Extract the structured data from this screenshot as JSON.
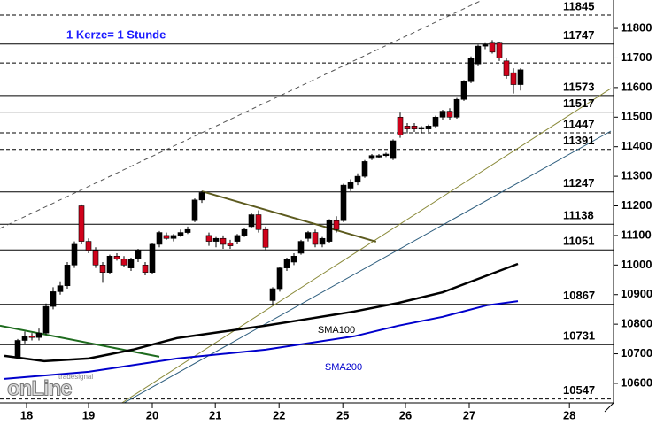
{
  "chart_data": {
    "type": "candlestick",
    "annotation": "1 Kerze= 1 Stunde",
    "up_color": "#000000",
    "down_color": "#d0021b",
    "open": [
      10690,
      10745,
      10760,
      10755,
      10770,
      10860,
      10910,
      10930,
      11000,
      11200,
      11080,
      11050,
      11000,
      10975,
      11030,
      11020,
      10990,
      11020,
      11000,
      10975,
      11070,
      11100,
      11090,
      11100,
      11110,
      11150,
      11220,
      11100,
      11080,
      11090,
      11075,
      11080,
      11100,
      11130,
      11170,
      11120,
      10880,
      10920,
      10990,
      11010,
      11040,
      11090,
      11110,
      11070,
      11080,
      11150,
      11150,
      11260,
      11280,
      11300,
      11360,
      11365,
      11370,
      11360,
      11500,
      11470,
      11470,
      11460,
      11460,
      11470,
      11500,
      11520,
      11500,
      11560,
      11620,
      11680,
      11740,
      11750,
      11750,
      11690,
      11650,
      11610
    ],
    "high": [
      10750,
      10775,
      10770,
      10785,
      10870,
      10925,
      10945,
      11010,
      11080,
      11205,
      11090,
      11060,
      11010,
      11035,
      11040,
      11030,
      11025,
      11055,
      11010,
      11075,
      11115,
      11110,
      11105,
      11120,
      11130,
      11225,
      11250,
      11110,
      11095,
      11100,
      11085,
      11105,
      11125,
      11175,
      11185,
      11130,
      10925,
      10995,
      11025,
      11040,
      11085,
      11115,
      11120,
      11095,
      11155,
      11165,
      11275,
      11290,
      11310,
      11355,
      11375,
      11375,
      11380,
      11425,
      11515,
      11480,
      11480,
      11470,
      11475,
      11505,
      11525,
      11530,
      11565,
      11625,
      11705,
      11745,
      11750,
      11760,
      11755,
      11700,
      11665,
      11665
    ],
    "low": [
      10685,
      10735,
      10745,
      10745,
      10765,
      10850,
      10900,
      10920,
      10990,
      11070,
      11040,
      10990,
      10940,
      10970,
      11015,
      10995,
      10980,
      11010,
      10965,
      10970,
      11060,
      11085,
      11080,
      11095,
      11105,
      11145,
      11210,
      11065,
      11060,
      11055,
      11055,
      11070,
      11095,
      11125,
      11110,
      11050,
      10865,
      10910,
      10980,
      11000,
      11035,
      11080,
      11060,
      11060,
      11075,
      11110,
      11145,
      11250,
      11270,
      11295,
      11355,
      11360,
      11365,
      11355,
      11430,
      11445,
      11450,
      11445,
      11450,
      11465,
      11490,
      11490,
      11495,
      11555,
      11615,
      11675,
      11730,
      11715,
      11690,
      11630,
      11580,
      11590
    ],
    "close": [
      10745,
      10760,
      10755,
      10770,
      10860,
      10910,
      10930,
      11000,
      11070,
      11080,
      11050,
      11000,
      10975,
      11030,
      11020,
      11000,
      11020,
      11050,
      10975,
      11070,
      11110,
      11090,
      11100,
      11110,
      11120,
      11220,
      11245,
      11080,
      11090,
      11070,
      11065,
      11100,
      11120,
      11170,
      11120,
      11060,
      10920,
      10990,
      11020,
      11030,
      11080,
      11110,
      11070,
      11090,
      11150,
      11120,
      11270,
      11280,
      11300,
      11350,
      11370,
      11370,
      11375,
      11420,
      11440,
      11460,
      11460,
      11465,
      11470,
      11500,
      11520,
      11500,
      11560,
      11620,
      11700,
      11740,
      11745,
      11720,
      11700,
      11640,
      11610,
      11660
    ],
    "xlim": [
      -2.5,
      84.125
    ],
    "xticks": [
      {
        "value": 1.25,
        "label": "18"
      },
      {
        "value": 10,
        "label": "19"
      },
      {
        "value": 19,
        "label": "20"
      },
      {
        "value": 27.9,
        "label": "21"
      },
      {
        "value": 36.9,
        "label": "22"
      },
      {
        "value": 45.9,
        "label": "25"
      },
      {
        "value": 54.75,
        "label": "26"
      },
      {
        "value": 63.75,
        "label": "27"
      },
      {
        "value": 77.9,
        "label": "28"
      }
    ],
    "ylim": [
      10534,
      11896
    ],
    "yticks": [
      10600,
      10700,
      10800,
      10900,
      11000,
      11100,
      11200,
      11300,
      11400,
      11500,
      11600,
      11700,
      11800
    ],
    "levels": [
      {
        "value": 11845,
        "label": "11845",
        "dashed": true
      },
      {
        "value": 11747,
        "label": "11747",
        "dashed": false
      },
      {
        "value": 11683,
        "dashed": true
      },
      {
        "value": 11573,
        "label": "11573",
        "dashed": false
      },
      {
        "value": 11517,
        "label": "11517",
        "dashed": false
      },
      {
        "value": 11447,
        "label": "11447",
        "dashed": true
      },
      {
        "value": 11391,
        "label": "11391",
        "dashed": true
      },
      {
        "value": 11247,
        "label": "11247",
        "dashed": false
      },
      {
        "value": 11138,
        "label": "11138",
        "dashed": false
      },
      {
        "value": 11051,
        "label": "11051",
        "dashed": false
      },
      {
        "value": 10867,
        "label": "10867",
        "dashed": false
      },
      {
        "value": 10731,
        "label": "10731",
        "dashed": false
      },
      {
        "value": 10547,
        "label": "10547",
        "dashed": true
      }
    ],
    "series": [
      {
        "name": "SMA100",
        "color": "#000000",
        "x": [
          -1.875,
          3.75,
          10,
          16.25,
          22.5,
          28.75,
          35,
          41.25,
          47.5,
          53.75,
          60,
          65,
          70.625
        ],
        "values": [
          10693,
          10675,
          10684,
          10714,
          10753,
          10774,
          10795,
          10819,
          10843,
          10872,
          10908,
          10953,
          11004
        ]
      },
      {
        "name": "SMA200",
        "color": "#0000cc",
        "x": [
          -1.875,
          10,
          22.5,
          35,
          47.5,
          53.75,
          60,
          66.25,
          70.625
        ],
        "values": [
          10615,
          10639,
          10684,
          10714,
          10759,
          10795,
          10825,
          10864,
          10878
        ]
      }
    ],
    "trendlines": [
      {
        "color": "#555555",
        "dashed": true,
        "x": [
          -2.5,
          65.6
        ],
        "values": [
          11124,
          11896
        ]
      },
      {
        "color": "#8a8a3a",
        "dashed": false,
        "x": [
          13.75,
          83.75
        ],
        "values": [
          10519,
          11597
        ]
      },
      {
        "color": "#2f5f7f",
        "dashed": false,
        "x": [
          9.4,
          83.75
        ],
        "values": [
          10459,
          11453
        ]
      },
      {
        "color": "#5c5a1e",
        "dashed": false,
        "thick": true,
        "x": [
          26,
          50.6
        ],
        "values": [
          11249,
          11079
        ]
      },
      {
        "color": "#1e6b1e",
        "dashed": false,
        "thick": true,
        "x": [
          -2.5,
          20
        ],
        "values": [
          10795,
          10690
        ]
      }
    ],
    "logo": {
      "small": "tradesignal",
      "large": "onLine"
    }
  }
}
